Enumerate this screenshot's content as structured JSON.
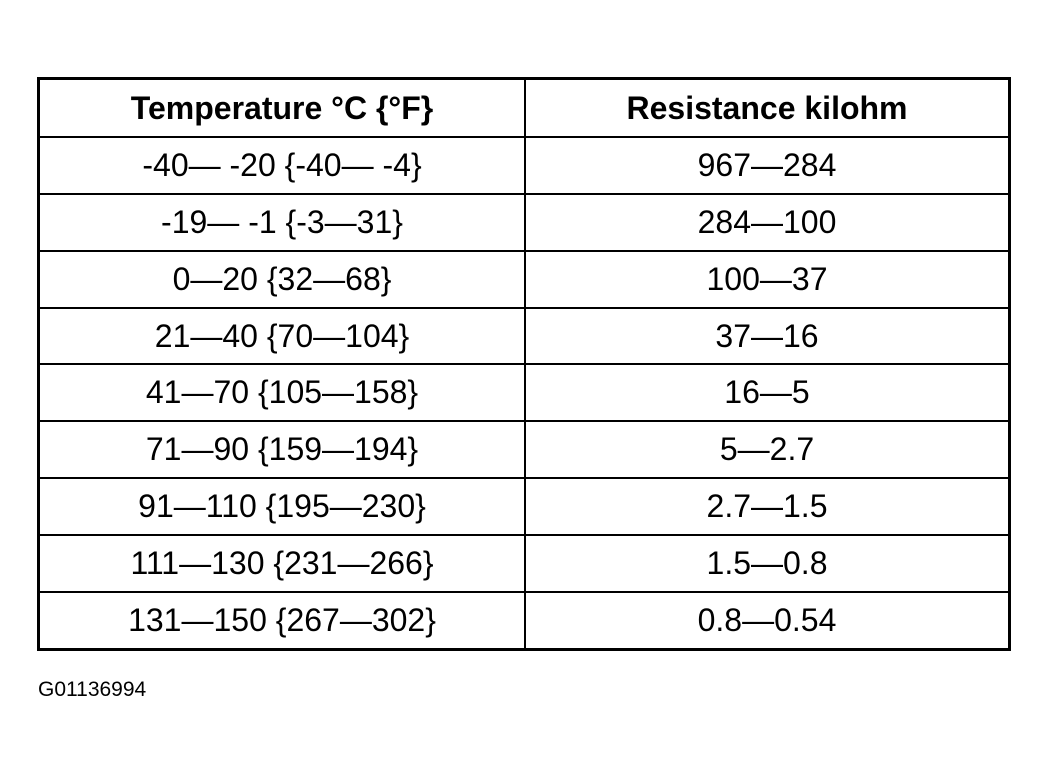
{
  "table": {
    "header": [
      "Temperature °C {°F}",
      "Resistance kilohm"
    ],
    "rows": [
      [
        "-40— -20 {-40— -4}",
        "967—284"
      ],
      [
        "-19— -1 {-3—31}",
        "284—100"
      ],
      [
        "0—20 {32—68}",
        "100—37"
      ],
      [
        "21—40 {70—104}",
        "37—16"
      ],
      [
        "41—70 {105—158}",
        "16—5"
      ],
      [
        "71—90 {159—194}",
        "5—2.7"
      ],
      [
        "91—110 {195—230}",
        "2.7—1.5"
      ],
      [
        "111—130 {231—266}",
        "1.5—0.8"
      ],
      [
        "131—150 {267—302}",
        "0.8—0.54"
      ]
    ]
  },
  "footer": {
    "code": "G01136994"
  }
}
